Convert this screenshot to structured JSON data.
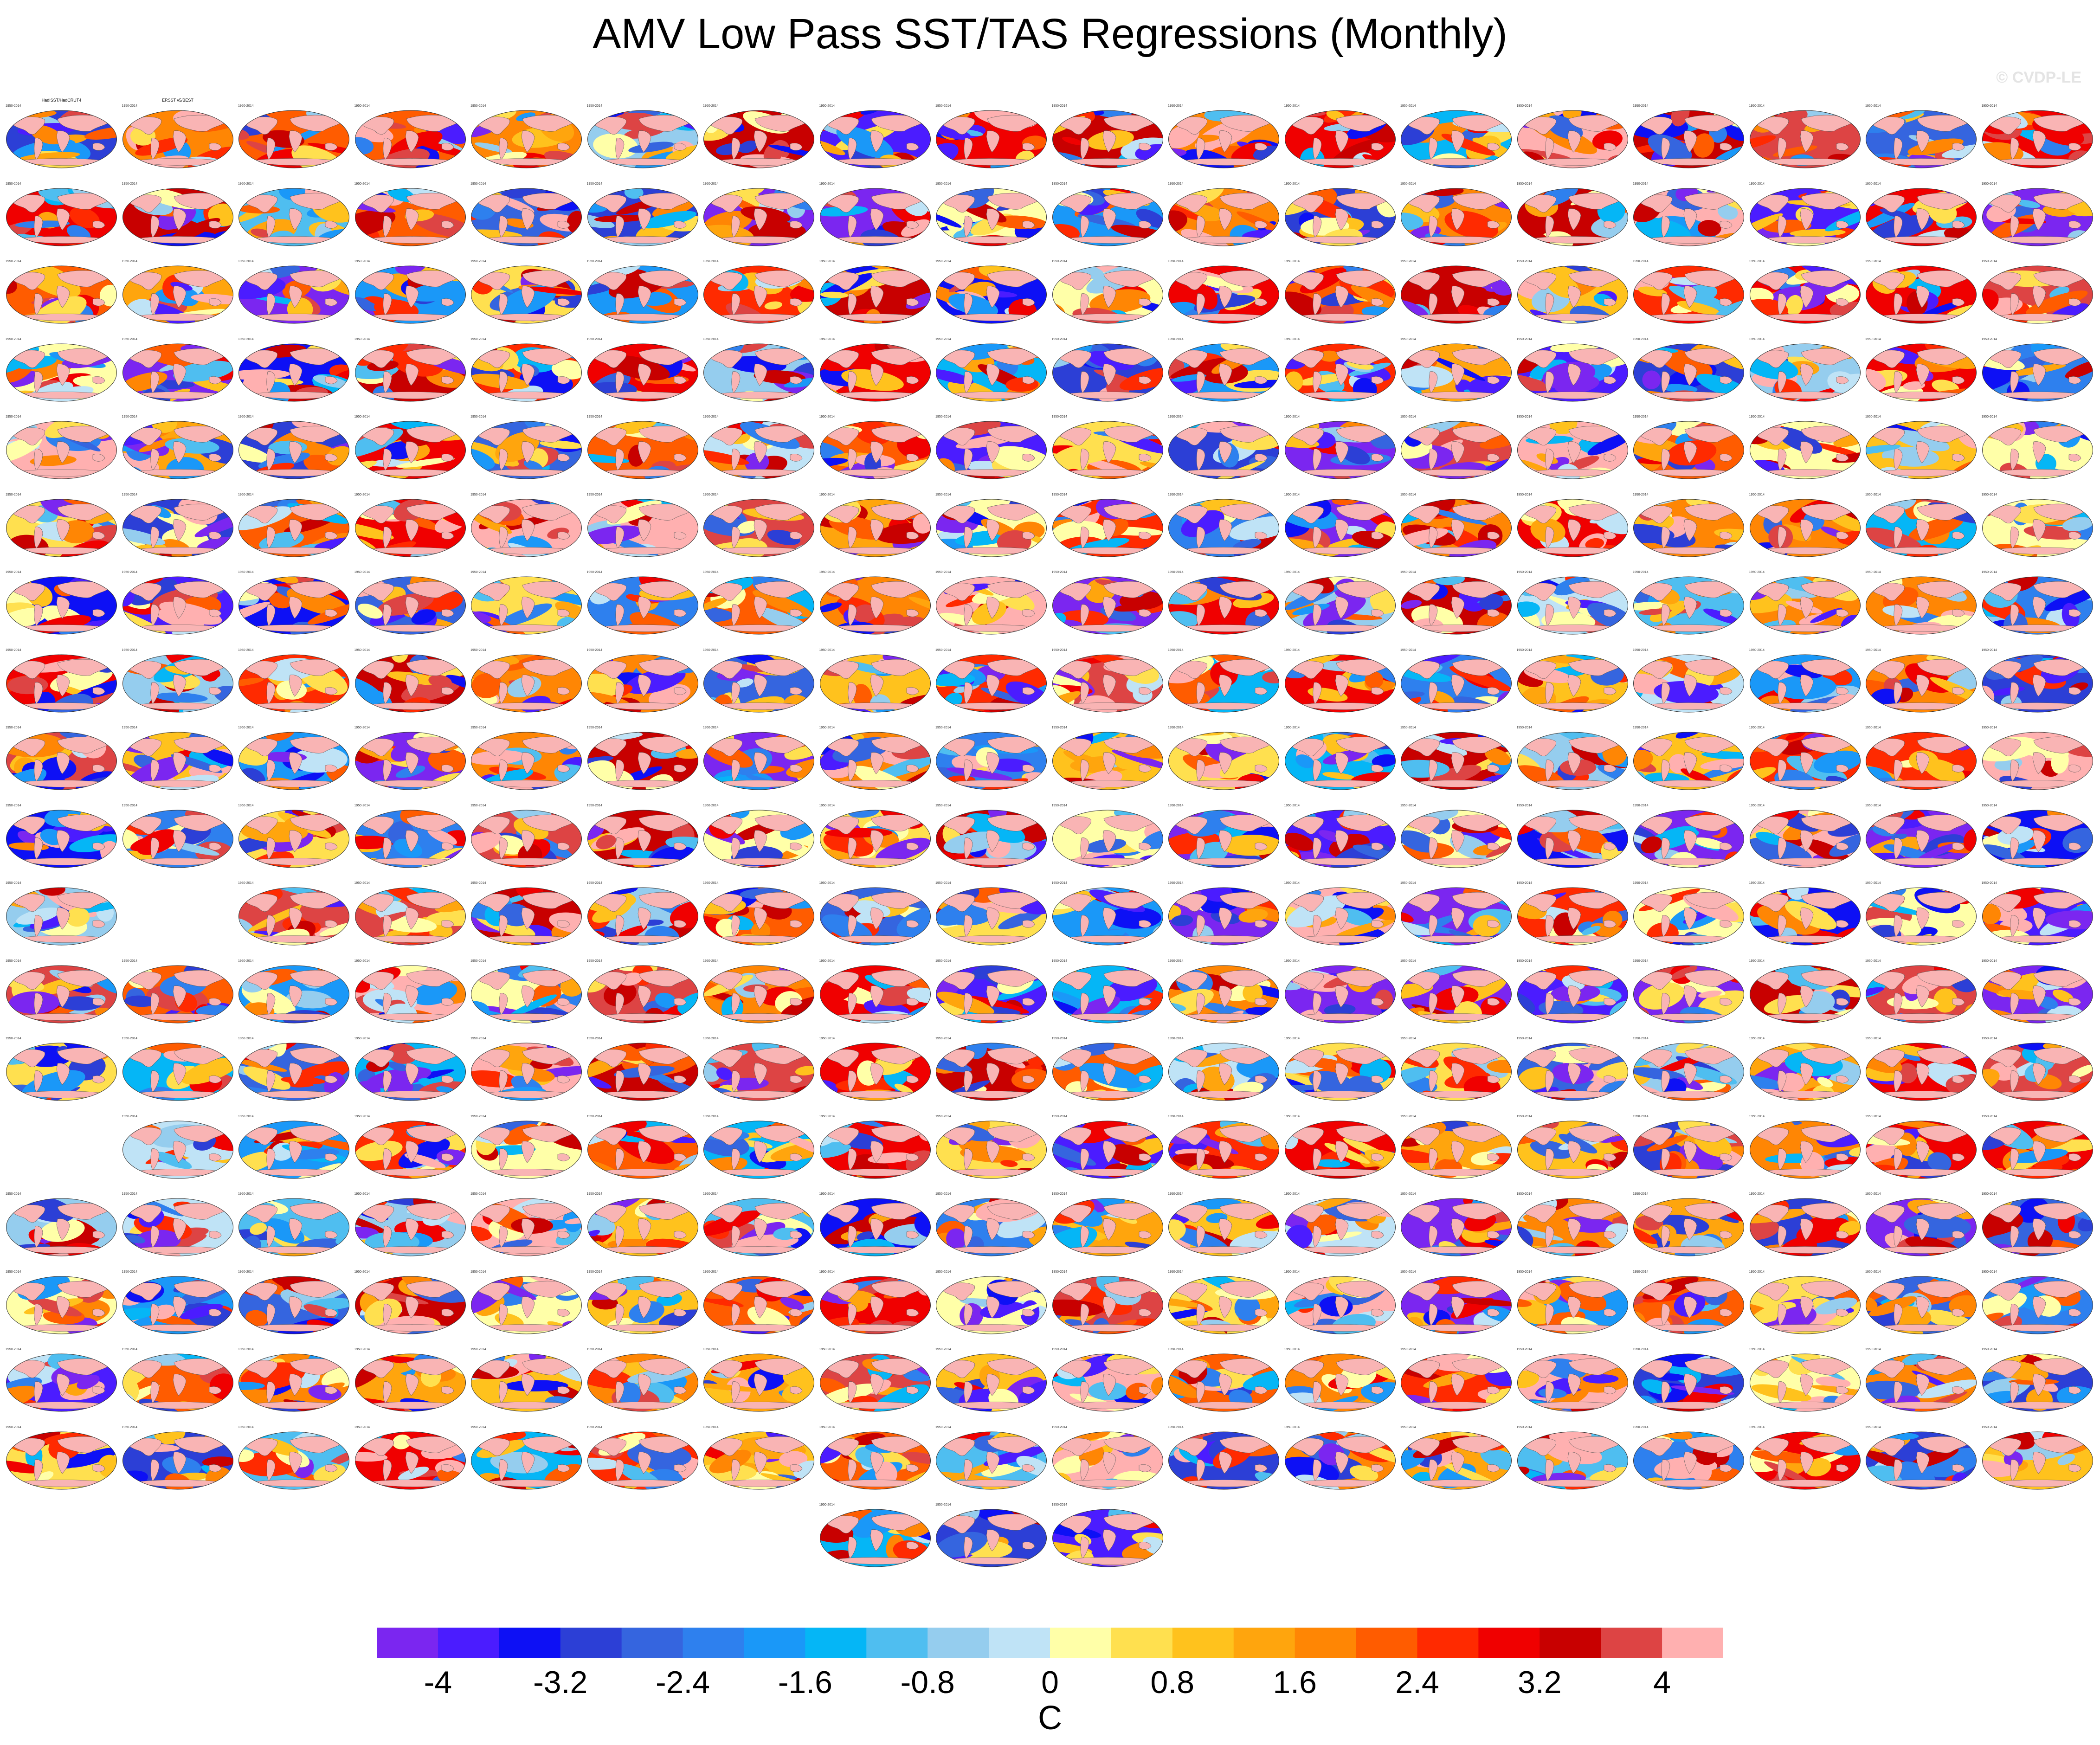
{
  "title": "AMV Low Pass SST/TAS Regressions (Monthly)",
  "watermark": "© CVDP-LE",
  "map": {
    "type": "grid of global regression maps",
    "rows": 19,
    "cols": 18,
    "panel_counts_per_row": [
      18,
      18,
      18,
      18,
      18,
      18,
      18,
      18,
      18,
      18,
      17,
      18,
      18,
      17,
      18,
      18,
      18,
      18,
      3
    ],
    "row_start_col": [
      0,
      0,
      0,
      0,
      0,
      0,
      0,
      0,
      0,
      0,
      0,
      0,
      0,
      1,
      0,
      0,
      0,
      0,
      7
    ],
    "row_gap_cols": [
      [],
      [],
      [],
      [],
      [],
      [],
      [],
      [],
      [],
      [],
      [
        1
      ],
      [],
      [],
      [],
      [],
      [],
      [],
      [],
      []
    ],
    "panel_titles_first_row": [
      "HadISST/HadCRUT4",
      "ERSST v5/BEST"
    ],
    "panel_years": "1950-2014",
    "land_fill_color": "#f9b4b4"
  },
  "colorbar": {
    "units": "C",
    "levels": [
      -4.4,
      -4,
      -3.6,
      -3.2,
      -2.8,
      -2.4,
      -2,
      -1.6,
      -1.2,
      -0.8,
      -0.4,
      0,
      0.4,
      0.8,
      1.2,
      1.6,
      2,
      2.4,
      2.8,
      3.2,
      3.6,
      4,
      4.4
    ],
    "colors": [
      "#7b26f0",
      "#4b1cff",
      "#0d10f5",
      "#2c3fd6",
      "#3565df",
      "#2e80ee",
      "#1a98f8",
      "#05b6f6",
      "#4fbef0",
      "#95cdee",
      "#bfe3f6",
      "#ffffa8",
      "#ffe04f",
      "#ffc21d",
      "#ffa50d",
      "#ff8604",
      "#ff5c00",
      "#ff2a00",
      "#f00000",
      "#c80000",
      "#dd4444",
      "#ffb0b0"
    ],
    "tick_labels": [
      "-4",
      "-3.2",
      "-2.4",
      "-1.6",
      "-0.8",
      "0",
      "0.8",
      "1.6",
      "2.4",
      "3.2",
      "4"
    ],
    "tick_values": [
      -4,
      -3.2,
      -2.4,
      -1.6,
      -0.8,
      0,
      0.8,
      1.6,
      2.4,
      3.2,
      4
    ]
  }
}
